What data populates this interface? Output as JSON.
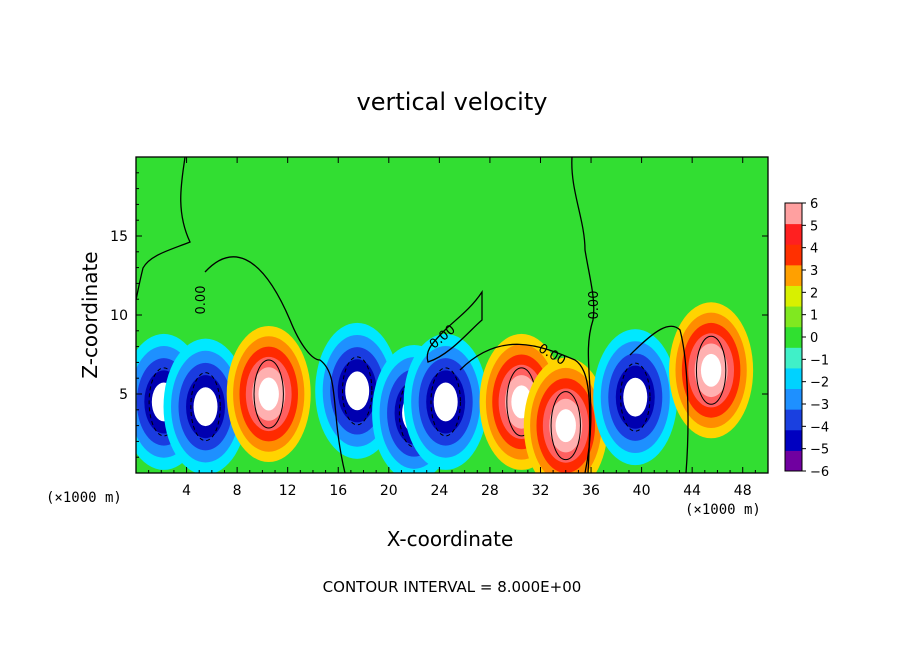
{
  "chart_data": {
    "type": "heatmap",
    "title": "vertical velocity",
    "xlabel": "X-coordinate",
    "ylabel": "Z-coordinate",
    "x_unit_label": "(×1000 m)",
    "xlim": [
      0,
      50
    ],
    "ylim": [
      0,
      20
    ],
    "x_ticks": [
      "4",
      "8",
      "12",
      "16",
      "20",
      "24",
      "28",
      "32",
      "36",
      "40",
      "44",
      "48"
    ],
    "y_ticks": [
      "5",
      "10",
      "15"
    ],
    "colorbar": {
      "range": [
        -6,
        6
      ],
      "ticks": [
        "6",
        "5",
        "4",
        "3",
        "2",
        "1",
        "0",
        "−1",
        "−2",
        "−3",
        "−4",
        "−5",
        "−6"
      ],
      "colors": [
        "#7000a0",
        "#0000c0",
        "#1a40e0",
        "#1e90ff",
        "#00d2ff",
        "#40f0c8",
        "#30e030",
        "#80e820",
        "#d8f000",
        "#ffa000",
        "#ff3000",
        "#ff2020",
        "#ffa0a0"
      ]
    },
    "contour_labels": [
      "0.00",
      "0.00",
      "0.00",
      "0.00"
    ],
    "cells": [
      {
        "x": 2.2,
        "z": 4.5,
        "w": -7.5
      },
      {
        "x": 5.5,
        "z": 4.2,
        "w": -7.0
      },
      {
        "x": 10.5,
        "z": 5.0,
        "w": 8.0
      },
      {
        "x": 17.5,
        "z": 5.2,
        "w": -7.5
      },
      {
        "x": 22.0,
        "z": 3.8,
        "w": -6.5
      },
      {
        "x": 24.5,
        "z": 4.5,
        "w": -7.0
      },
      {
        "x": 30.5,
        "z": 4.5,
        "w": 7.5
      },
      {
        "x": 34.0,
        "z": 3.0,
        "w": 5.5
      },
      {
        "x": 39.5,
        "z": 4.8,
        "w": -7.5
      },
      {
        "x": 45.5,
        "z": 6.5,
        "w": 8.0
      }
    ],
    "footer": "CONTOUR INTERVAL = 8.000E+00"
  }
}
